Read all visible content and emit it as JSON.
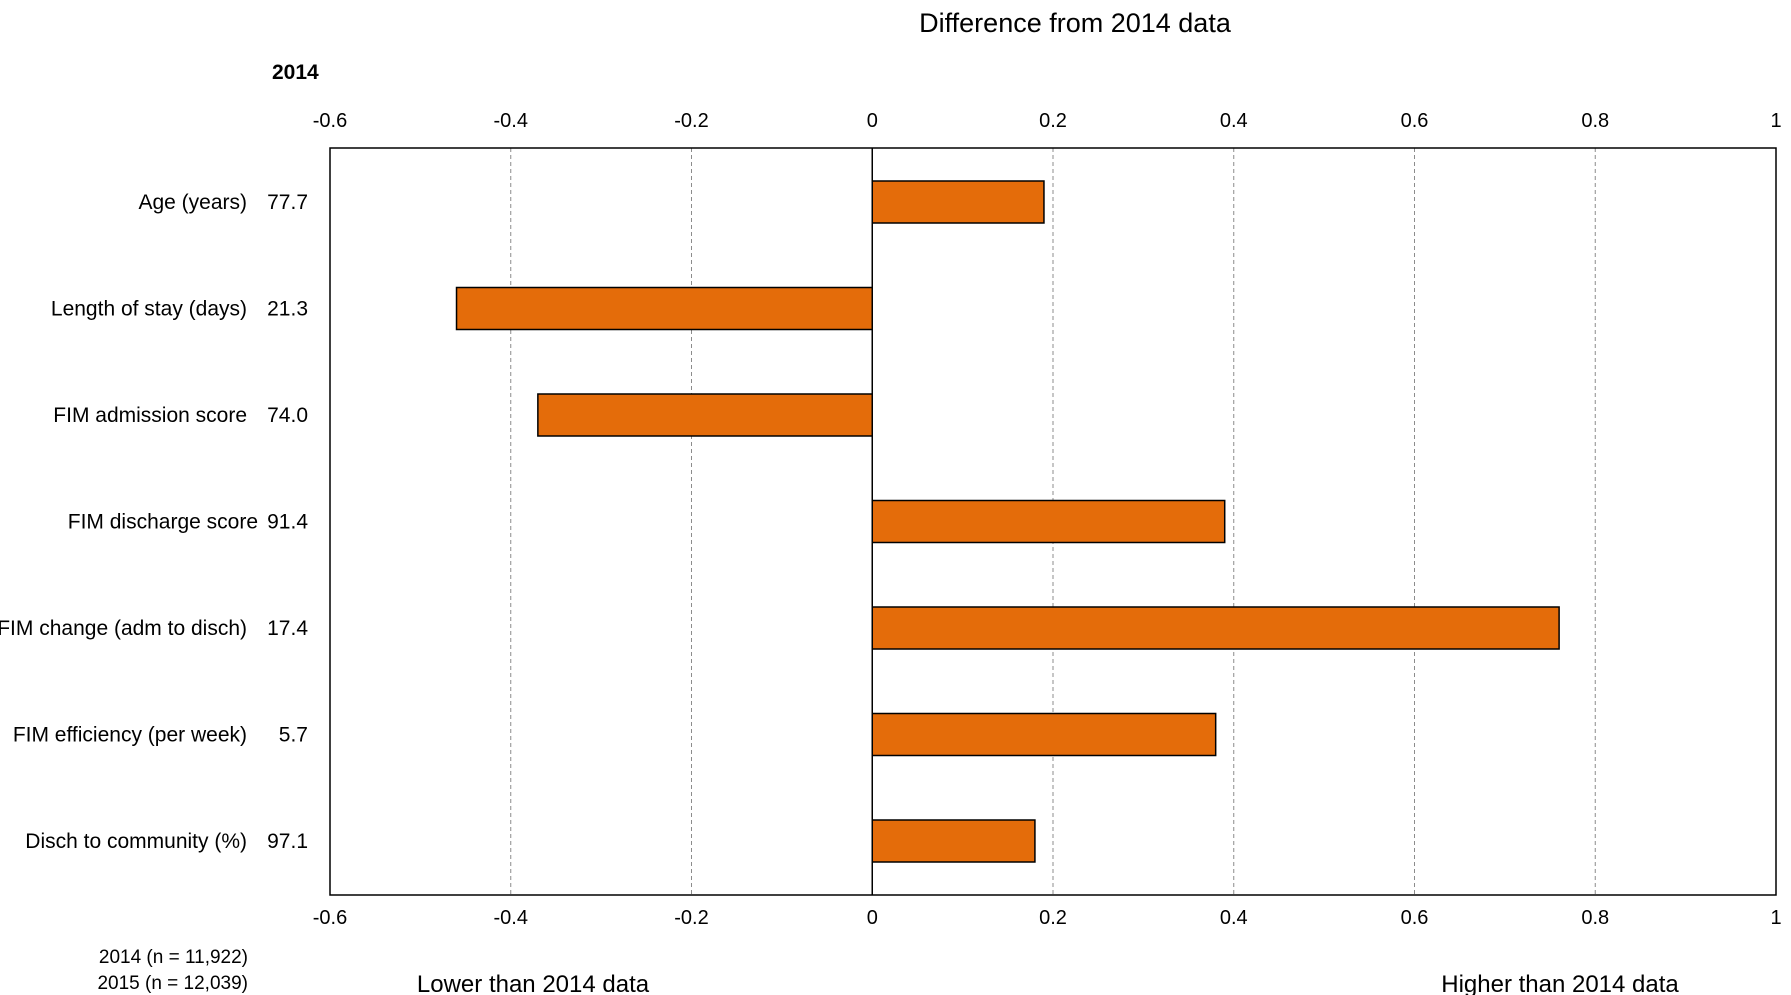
{
  "chart_data": {
    "type": "bar",
    "orientation": "horizontal",
    "title": "Difference from 2014 data",
    "year_heading": "2014",
    "categories": [
      "Age (years)",
      "Length of stay (days)",
      "FIM admission score",
      "FIM discharge score",
      "FIM change (adm to disch)",
      "FIM efficiency (per week)",
      "Disch to community (%)"
    ],
    "baseline_values": [
      "77.7",
      "21.3",
      "74.0",
      "91.4",
      "17.4",
      "5.7",
      "97.1"
    ],
    "values": [
      0.19,
      -0.46,
      -0.37,
      0.39,
      0.76,
      0.38,
      0.18
    ],
    "xlim": [
      -0.6,
      1
    ],
    "xticks": [
      -0.6,
      -0.4,
      -0.2,
      0,
      0.2,
      0.4,
      0.6,
      0.8,
      1
    ],
    "xtick_labels": [
      "-0.6",
      "-0.4",
      "-0.2",
      "0",
      "0.2",
      "0.4",
      "0.6",
      "0.8",
      "1"
    ],
    "grid": "vertical dashed",
    "bar_color": "#E46C0A",
    "notes": [
      "2014  (n = 11,922)",
      "2015  (n = 12,039)"
    ],
    "lower_label": "Lower than 2014 data",
    "higher_label": "Higher than 2014 data"
  }
}
